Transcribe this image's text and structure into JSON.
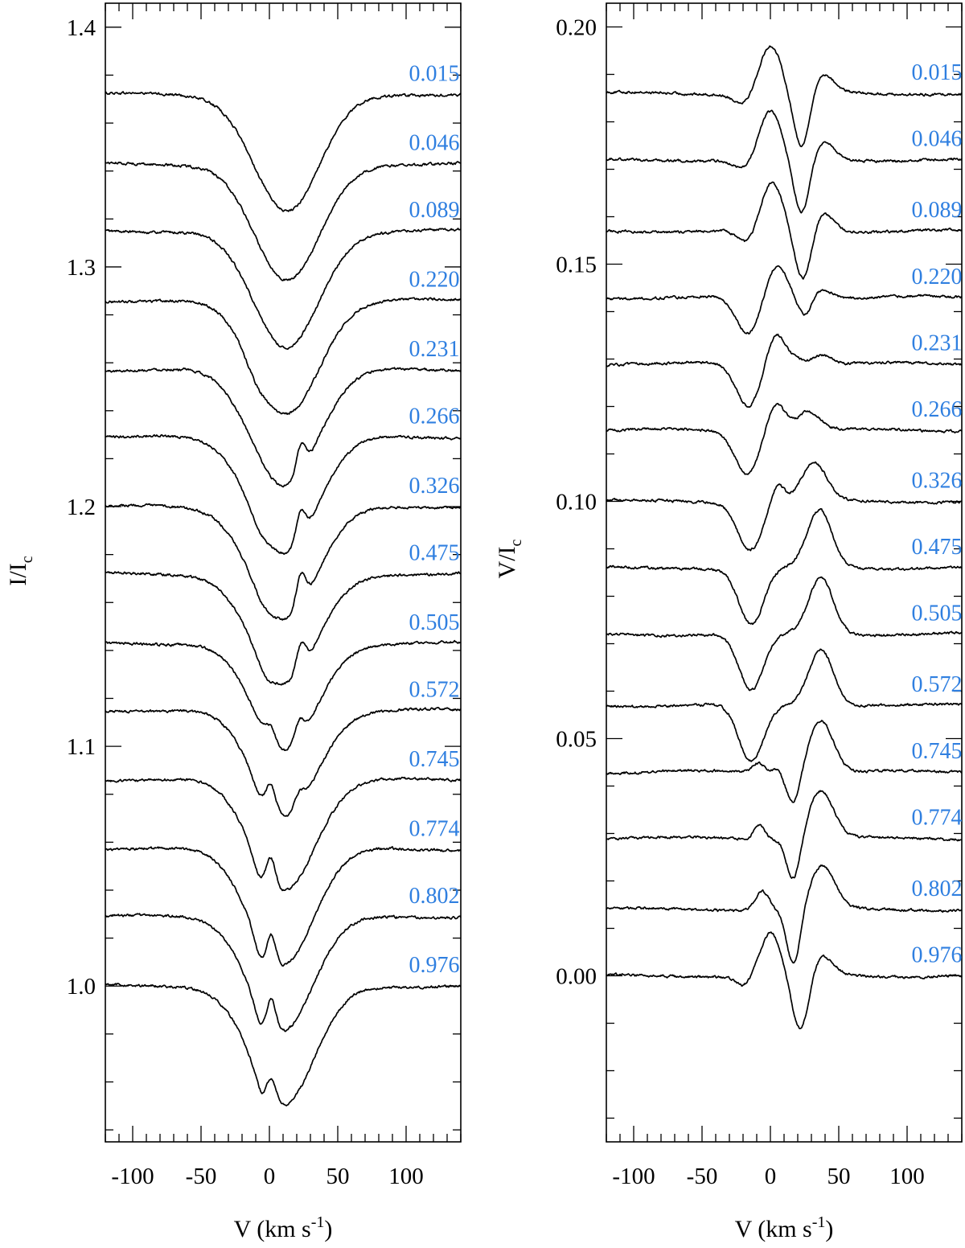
{
  "chart_data": [
    {
      "type": "line",
      "xlabel": "V (km s-1)",
      "xlabel_main": "V (km s",
      "xlabel_sup": "-1",
      "xlabel_end": ")",
      "ylabel": "I/Ic",
      "ylabel_main": "I/I",
      "ylabel_sub": "c",
      "xlim": [
        -120,
        140
      ],
      "ylim": [
        0.935,
        1.41
      ],
      "x_ticks": [
        -100,
        -50,
        0,
        50,
        100
      ],
      "x_tick_labels": [
        "-100",
        "-50",
        "0",
        "50",
        "100"
      ],
      "y_ticks": [
        1.0,
        1.1,
        1.2,
        1.3,
        1.4
      ],
      "y_tick_labels": [
        "1.0",
        "1.1",
        "1.2",
        "1.3",
        "1.4"
      ],
      "grid": false,
      "offset_step": 0.0286,
      "series": [
        {
          "name": "0.015",
          "offset": 0.372,
          "features": [
            {
              "c": 13,
              "w": 24,
              "a": -0.049
            }
          ]
        },
        {
          "name": "0.046",
          "offset": 0.343,
          "features": [
            {
              "c": 13,
              "w": 24,
              "a": -0.049
            }
          ]
        },
        {
          "name": "0.089",
          "offset": 0.315,
          "features": [
            {
              "c": 12,
              "w": 24,
              "a": -0.049
            }
          ]
        },
        {
          "name": "0.220",
          "offset": 0.286,
          "features": [
            {
              "c": 12,
              "w": 24,
              "a": -0.047
            },
            {
              "c": -10,
              "w": 8,
              "a": -0.004
            }
          ]
        },
        {
          "name": "0.231",
          "offset": 0.257,
          "features": [
            {
              "c": 11,
              "w": 24,
              "a": -0.048
            },
            {
              "c": 23,
              "w": 3.5,
              "a": 0.012
            }
          ]
        },
        {
          "name": "0.266",
          "offset": 0.229,
          "features": [
            {
              "c": 11,
              "w": 24,
              "a": -0.048
            },
            {
              "c": 23,
              "w": 3.5,
              "a": 0.012
            },
            {
              "c": -8,
              "w": 6,
              "a": -0.003
            }
          ]
        },
        {
          "name": "0.326",
          "offset": 0.2,
          "features": [
            {
              "c": 11,
              "w": 24,
              "a": -0.047
            },
            {
              "c": 23,
              "w": 3.5,
              "a": 0.013
            },
            {
              "c": -5,
              "w": 6,
              "a": -0.003
            }
          ]
        },
        {
          "name": "0.475",
          "offset": 0.172,
          "features": [
            {
              "c": 11,
              "w": 24,
              "a": -0.046
            },
            {
              "c": 23,
              "w": 3.5,
              "a": 0.011
            },
            {
              "c": -3,
              "w": 6,
              "a": -0.004
            }
          ]
        },
        {
          "name": "0.505",
          "offset": 0.143,
          "features": [
            {
              "c": 11,
              "w": 23,
              "a": -0.045
            },
            {
              "c": 22,
              "w": 3.5,
              "a": 0.008
            },
            {
              "c": 1,
              "w": 3.5,
              "a": 0.006
            }
          ]
        },
        {
          "name": "0.572",
          "offset": 0.115,
          "features": [
            {
              "c": 11,
              "w": 23,
              "a": -0.044
            },
            {
              "c": 22,
              "w": 3.5,
              "a": 0.006
            },
            {
              "c": 1,
              "w": 3.5,
              "a": 0.01
            },
            {
              "c": -7,
              "w": 5,
              "a": -0.004
            }
          ]
        },
        {
          "name": "0.745",
          "offset": 0.086,
          "features": [
            {
              "c": 10,
              "w": 23,
              "a": -0.046
            },
            {
              "c": 1,
              "w": 3.5,
              "a": 0.012
            },
            {
              "c": -7,
              "w": 5,
              "a": -0.006
            }
          ]
        },
        {
          "name": "0.774",
          "offset": 0.057,
          "features": [
            {
              "c": 9,
              "w": 23,
              "a": -0.048
            },
            {
              "c": 1,
              "w": 3.5,
              "a": 0.014
            },
            {
              "c": -5,
              "w": 5,
              "a": -0.008
            }
          ]
        },
        {
          "name": "0.802",
          "offset": 0.029,
          "features": [
            {
              "c": 9,
              "w": 23,
              "a": -0.048
            },
            {
              "c": 1,
              "w": 3.5,
              "a": 0.015
            },
            {
              "c": -5,
              "w": 5,
              "a": -0.008
            }
          ]
        },
        {
          "name": "0.976",
          "offset": 0.0,
          "features": [
            {
              "c": 10,
              "w": 23,
              "a": -0.05
            },
            {
              "c": 1,
              "w": 3.5,
              "a": 0.012
            },
            {
              "c": -4,
              "w": 5,
              "a": -0.007
            }
          ]
        }
      ]
    },
    {
      "type": "line",
      "xlabel": "V (km s-1)",
      "xlabel_main": "V (km s",
      "xlabel_sup": "-1",
      "xlabel_end": ")",
      "ylabel": "V/Ic",
      "ylabel_main": "V/I",
      "ylabel_sub": "c",
      "xlim": [
        -120,
        140
      ],
      "ylim": [
        -0.035,
        0.205
      ],
      "x_ticks": [
        -100,
        -50,
        0,
        50,
        100
      ],
      "x_tick_labels": [
        "-100",
        "-50",
        "0",
        "50",
        "100"
      ],
      "y_ticks": [
        0.0,
        0.05,
        0.1,
        0.15,
        0.2
      ],
      "y_tick_labels": [
        "0.00",
        "0.05",
        "0.10",
        "0.15",
        "0.20"
      ],
      "grid": false,
      "offset_step": 0.0143,
      "series": [
        {
          "name": "0.015",
          "offset": 0.186,
          "features": [
            {
              "c": 0,
              "w": 8,
              "a": 0.01
            },
            {
              "c": 23,
              "w": 6,
              "a": -0.012
            },
            {
              "c": 38,
              "w": 8,
              "a": 0.004
            },
            {
              "c": -20,
              "w": 7,
              "a": -0.002
            }
          ]
        },
        {
          "name": "0.046",
          "offset": 0.172,
          "features": [
            {
              "c": 0,
              "w": 8,
              "a": 0.01
            },
            {
              "c": 23,
              "w": 6,
              "a": -0.012
            },
            {
              "c": 38,
              "w": 8,
              "a": 0.004
            },
            {
              "c": -20,
              "w": 7,
              "a": -0.002
            }
          ]
        },
        {
          "name": "0.089",
          "offset": 0.157,
          "features": [
            {
              "c": 1,
              "w": 8,
              "a": 0.01
            },
            {
              "c": 24,
              "w": 6,
              "a": -0.011
            },
            {
              "c": 38,
              "w": 8,
              "a": 0.004
            },
            {
              "c": -17,
              "w": 7,
              "a": -0.003
            }
          ]
        },
        {
          "name": "0.220",
          "offset": 0.143,
          "features": [
            {
              "c": 4,
              "w": 8,
              "a": 0.007
            },
            {
              "c": 25,
              "w": 5,
              "a": -0.004
            },
            {
              "c": 38,
              "w": 7,
              "a": 0.002
            },
            {
              "c": -16,
              "w": 9,
              "a": -0.008
            }
          ]
        },
        {
          "name": "0.231",
          "offset": 0.129,
          "features": [
            {
              "c": 4,
              "w": 7,
              "a": 0.007
            },
            {
              "c": 20,
              "w": 5,
              "a": 0.001
            },
            {
              "c": 38,
              "w": 7,
              "a": 0.002
            },
            {
              "c": -16,
              "w": 9,
              "a": -0.009
            }
          ]
        },
        {
          "name": "0.266",
          "offset": 0.115,
          "features": [
            {
              "c": 4,
              "w": 7,
              "a": 0.006
            },
            {
              "c": 28,
              "w": 8,
              "a": 0.004
            },
            {
              "c": -17,
              "w": 9,
              "a": -0.009
            }
          ]
        },
        {
          "name": "0.326",
          "offset": 0.1,
          "features": [
            {
              "c": 5,
              "w": 5,
              "a": 0.004
            },
            {
              "c": 32,
              "w": 9,
              "a": 0.008
            },
            {
              "c": -15,
              "w": 9,
              "a": -0.01
            }
          ]
        },
        {
          "name": "0.475",
          "offset": 0.086,
          "features": [
            {
              "c": 36,
              "w": 9,
              "a": 0.012
            },
            {
              "c": -14,
              "w": 9,
              "a": -0.012
            }
          ]
        },
        {
          "name": "0.505",
          "offset": 0.072,
          "features": [
            {
              "c": 37,
              "w": 9,
              "a": 0.012
            },
            {
              "c": -14,
              "w": 9,
              "a": -0.012
            }
          ]
        },
        {
          "name": "0.572",
          "offset": 0.057,
          "features": [
            {
              "c": 37,
              "w": 9,
              "a": 0.012
            },
            {
              "c": -14,
              "w": 9,
              "a": -0.012
            }
          ]
        },
        {
          "name": "0.745",
          "offset": 0.043,
          "features": [
            {
              "c": 37,
              "w": 9,
              "a": 0.011
            },
            {
              "c": 17,
              "w": 5,
              "a": -0.007
            },
            {
              "c": -9,
              "w": 4,
              "a": 0.002
            },
            {
              "c": 5,
              "w": 4,
              "a": 0.001
            }
          ]
        },
        {
          "name": "0.774",
          "offset": 0.029,
          "features": [
            {
              "c": 37,
              "w": 9,
              "a": 0.01
            },
            {
              "c": 17,
              "w": 5,
              "a": -0.009
            },
            {
              "c": -8,
              "w": 4,
              "a": 0.003
            }
          ]
        },
        {
          "name": "0.802",
          "offset": 0.014,
          "features": [
            {
              "c": 38,
              "w": 9,
              "a": 0.009
            },
            {
              "c": 17,
              "w": 5,
              "a": -0.012
            },
            {
              "c": -6,
              "w": 5,
              "a": 0.004
            }
          ]
        },
        {
          "name": "0.976",
          "offset": 0.0,
          "features": [
            {
              "c": 0,
              "w": 7,
              "a": 0.009
            },
            {
              "c": 22,
              "w": 6,
              "a": -0.012
            },
            {
              "c": 38,
              "w": 8,
              "a": 0.004
            },
            {
              "c": -20,
              "w": 5,
              "a": -0.002
            }
          ]
        }
      ]
    }
  ],
  "colors": {
    "phase_label": "#2f7fe0",
    "curve": "#000000"
  }
}
